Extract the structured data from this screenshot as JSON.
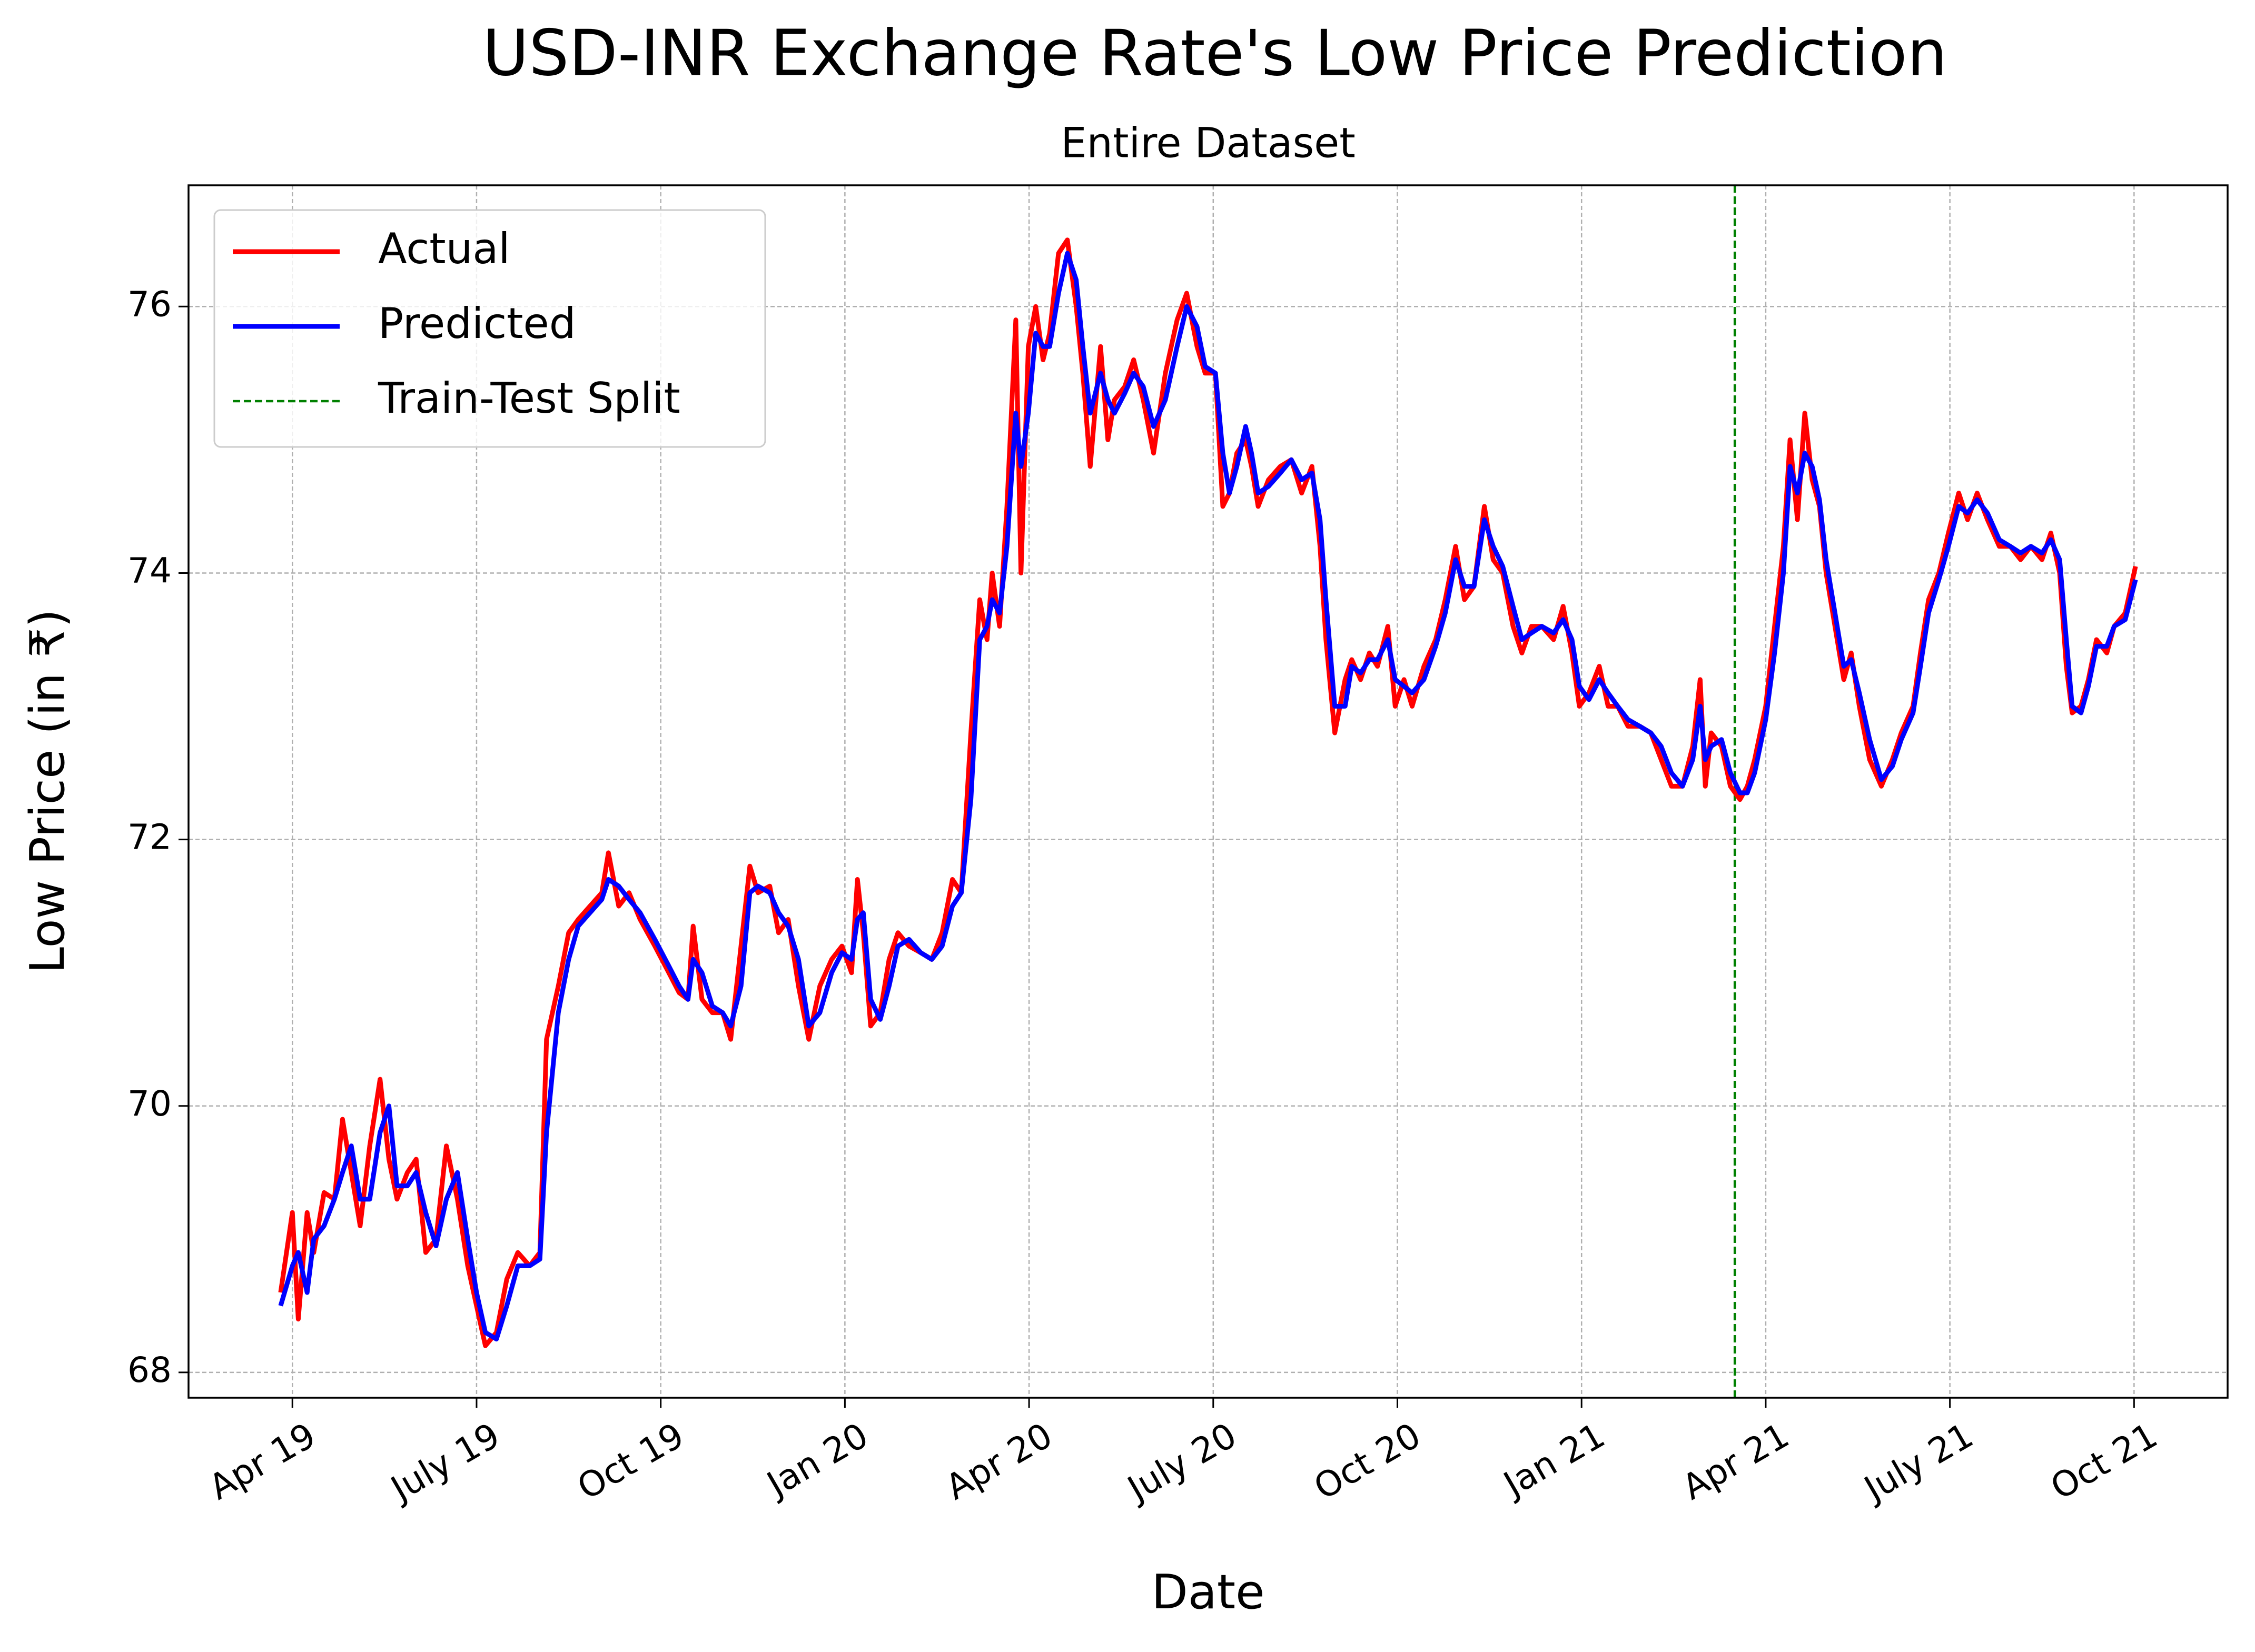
{
  "chart_data": {
    "type": "line",
    "title": "USD-INR Exchange Rate's Low Price Prediction",
    "subtitle": "Entire Dataset",
    "x_label": "Date",
    "y_label": "Low Price (in ₹)",
    "x": [
      2019.234,
      2019.25,
      2019.258,
      2019.27,
      2019.279,
      2019.293,
      2019.307,
      2019.318,
      2019.33,
      2019.342,
      2019.355,
      2019.369,
      2019.381,
      2019.392,
      2019.406,
      2019.418,
      2019.431,
      2019.445,
      2019.459,
      2019.474,
      2019.488,
      2019.5,
      2019.512,
      2019.527,
      2019.541,
      2019.556,
      2019.572,
      2019.586,
      2019.595,
      2019.611,
      2019.625,
      2019.638,
      2019.654,
      2019.67,
      2019.679,
      2019.693,
      2019.707,
      2019.722,
      2019.742,
      2019.761,
      2019.775,
      2019.787,
      2019.794,
      2019.806,
      2019.82,
      2019.834,
      2019.845,
      2019.859,
      2019.871,
      2019.882,
      2019.898,
      2019.91,
      2019.923,
      2019.937,
      2019.951,
      2019.966,
      2019.982,
      2019.996,
      2020.009,
      2020.017,
      2020.025,
      2020.035,
      2020.048,
      2020.06,
      2020.072,
      2020.087,
      2020.103,
      2020.118,
      2020.132,
      2020.146,
      2020.158,
      2020.171,
      2020.183,
      2020.193,
      2020.2,
      2020.21,
      2020.22,
      2020.232,
      2020.239,
      2020.249,
      2020.259,
      2020.269,
      2020.278,
      2020.29,
      2020.302,
      2020.314,
      2020.323,
      2020.333,
      2020.347,
      2020.357,
      2020.366,
      2020.38,
      2020.392,
      2020.405,
      2020.419,
      2020.435,
      2020.451,
      2020.464,
      2020.478,
      2020.489,
      2020.503,
      2020.513,
      2020.522,
      2020.532,
      2020.544,
      2020.552,
      2020.561,
      2020.575,
      2020.591,
      2020.606,
      2020.62,
      2020.634,
      2020.645,
      2020.653,
      2020.665,
      2020.679,
      2020.688,
      2020.7,
      2020.712,
      2020.723,
      2020.737,
      2020.747,
      2020.759,
      2020.77,
      2020.786,
      2020.802,
      2020.815,
      2020.829,
      2020.841,
      2020.854,
      2020.868,
      2020.88,
      2020.893,
      2020.907,
      2020.919,
      2020.932,
      2020.946,
      2020.962,
      2020.975,
      2020.987,
      2020.997,
      2021.01,
      2021.024,
      2021.036,
      2021.049,
      2021.063,
      2021.079,
      2021.094,
      2021.108,
      2021.122,
      2021.137,
      2021.151,
      2021.161,
      2021.168,
      2021.176,
      2021.19,
      2021.202,
      2021.215,
      2021.225,
      2021.235,
      2021.25,
      2021.262,
      2021.274,
      2021.283,
      2021.293,
      2021.303,
      2021.313,
      2021.323,
      2021.332,
      2021.344,
      2021.356,
      2021.366,
      2021.377,
      2021.391,
      2021.407,
      2021.422,
      2021.434,
      2021.45,
      2021.46,
      2021.471,
      2021.485,
      2021.498,
      2021.512,
      2021.524,
      2021.537,
      2021.551,
      2021.567,
      2021.582,
      2021.596,
      2021.61,
      2021.625,
      2021.637,
      2021.649,
      2021.658,
      2021.666,
      2021.678,
      2021.688,
      2021.699,
      2021.713,
      2021.723,
      2021.738,
      2021.752
    ],
    "series": [
      {
        "name": "Actual",
        "color": "#ff0000",
        "values": [
          68.6,
          69.2,
          68.4,
          69.2,
          68.9,
          69.35,
          69.3,
          69.9,
          69.5,
          69.1,
          69.7,
          70.2,
          69.6,
          69.3,
          69.5,
          69.6,
          68.9,
          69.0,
          69.7,
          69.3,
          68.8,
          68.5,
          68.2,
          68.3,
          68.7,
          68.9,
          68.8,
          68.9,
          70.5,
          70.9,
          71.3,
          71.4,
          71.5,
          71.6,
          71.9,
          71.5,
          71.6,
          71.4,
          71.2,
          71.0,
          70.85,
          70.8,
          71.35,
          70.8,
          70.7,
          70.7,
          70.5,
          71.2,
          71.8,
          71.6,
          71.65,
          71.3,
          71.4,
          70.9,
          70.5,
          70.9,
          71.1,
          71.2,
          71.0,
          71.7,
          71.3,
          70.6,
          70.7,
          71.1,
          71.3,
          71.2,
          71.15,
          71.1,
          71.3,
          71.7,
          71.6,
          72.8,
          73.8,
          73.5,
          74.0,
          73.6,
          74.5,
          75.9,
          74.0,
          75.7,
          76.0,
          75.6,
          75.8,
          76.4,
          76.5,
          76.0,
          75.5,
          74.8,
          75.7,
          75.0,
          75.3,
          75.4,
          75.6,
          75.3,
          74.9,
          75.5,
          75.9,
          76.1,
          75.7,
          75.5,
          75.5,
          74.5,
          74.6,
          74.9,
          75.0,
          74.8,
          74.5,
          74.7,
          74.8,
          74.85,
          74.6,
          74.8,
          74.2,
          73.5,
          72.8,
          73.2,
          73.35,
          73.2,
          73.4,
          73.3,
          73.6,
          73.0,
          73.2,
          73.0,
          73.3,
          73.5,
          73.8,
          74.2,
          73.8,
          73.9,
          74.5,
          74.1,
          74.0,
          73.6,
          73.4,
          73.6,
          73.6,
          73.5,
          73.75,
          73.4,
          73.0,
          73.1,
          73.3,
          73.0,
          73.0,
          72.85,
          72.85,
          72.8,
          72.6,
          72.4,
          72.4,
          72.7,
          73.2,
          72.4,
          72.8,
          72.7,
          72.4,
          72.3,
          72.4,
          72.6,
          73.0,
          73.6,
          74.2,
          75.0,
          74.4,
          75.2,
          74.7,
          74.5,
          74.0,
          73.6,
          73.2,
          73.4,
          73.0,
          72.6,
          72.4,
          72.6,
          72.8,
          73.0,
          73.4,
          73.8,
          74.0,
          74.3,
          74.6,
          74.4,
          74.6,
          74.4,
          74.2,
          74.2,
          74.1,
          74.2,
          74.1,
          74.3,
          74.0,
          73.3,
          72.95,
          73.0,
          73.2,
          73.5,
          73.4,
          73.6,
          73.7,
          74.05
        ]
      },
      {
        "name": "Predicted",
        "color": "#0000ff",
        "values": [
          68.5,
          68.8,
          68.9,
          68.6,
          69.0,
          69.1,
          69.3,
          69.5,
          69.7,
          69.3,
          69.3,
          69.8,
          70.0,
          69.4,
          69.4,
          69.5,
          69.2,
          68.95,
          69.3,
          69.5,
          69.0,
          68.6,
          68.3,
          68.25,
          68.5,
          68.8,
          68.8,
          68.85,
          69.8,
          70.7,
          71.1,
          71.35,
          71.45,
          71.55,
          71.7,
          71.65,
          71.55,
          71.45,
          71.25,
          71.05,
          70.9,
          70.8,
          71.1,
          71.0,
          70.75,
          70.7,
          70.6,
          70.9,
          71.6,
          71.65,
          71.6,
          71.45,
          71.35,
          71.1,
          70.6,
          70.7,
          71.0,
          71.15,
          71.1,
          71.4,
          71.45,
          70.8,
          70.65,
          70.9,
          71.2,
          71.25,
          71.15,
          71.1,
          71.2,
          71.5,
          71.6,
          72.3,
          73.5,
          73.6,
          73.8,
          73.7,
          74.2,
          75.2,
          74.8,
          75.2,
          75.8,
          75.7,
          75.7,
          76.1,
          76.4,
          76.2,
          75.7,
          75.2,
          75.5,
          75.3,
          75.2,
          75.35,
          75.5,
          75.4,
          75.1,
          75.3,
          75.7,
          76.0,
          75.85,
          75.55,
          75.5,
          74.9,
          74.6,
          74.8,
          75.1,
          74.9,
          74.6,
          74.65,
          74.75,
          74.85,
          74.7,
          74.75,
          74.4,
          73.8,
          73.0,
          73.0,
          73.3,
          73.25,
          73.35,
          73.35,
          73.5,
          73.2,
          73.15,
          73.1,
          73.2,
          73.45,
          73.7,
          74.1,
          73.9,
          73.9,
          74.4,
          74.2,
          74.05,
          73.75,
          73.5,
          73.55,
          73.6,
          73.55,
          73.65,
          73.5,
          73.15,
          73.05,
          73.2,
          73.1,
          73.0,
          72.9,
          72.85,
          72.8,
          72.7,
          72.5,
          72.4,
          72.6,
          73.0,
          72.6,
          72.7,
          72.75,
          72.5,
          72.35,
          72.35,
          72.5,
          72.9,
          73.4,
          74.0,
          74.8,
          74.6,
          74.9,
          74.8,
          74.55,
          74.1,
          73.7,
          73.3,
          73.35,
          73.1,
          72.75,
          72.45,
          72.55,
          72.75,
          72.95,
          73.3,
          73.7,
          73.95,
          74.2,
          74.5,
          74.45,
          74.55,
          74.45,
          74.25,
          74.2,
          74.15,
          74.2,
          74.15,
          74.25,
          74.1,
          73.5,
          73.0,
          72.95,
          73.15,
          73.45,
          73.45,
          73.6,
          73.65,
          73.95
        ]
      }
    ],
    "vlines": [
      {
        "x": 2021.208,
        "label": "Train-Test Split",
        "color": "#008000"
      }
    ],
    "xlim": [
      2019.109,
      2021.877
    ],
    "ylim": [
      67.81,
      76.91
    ],
    "xticks": [
      {
        "value": 2019.25,
        "label": "Apr 19"
      },
      {
        "value": 2019.5,
        "label": "July 19"
      },
      {
        "value": 2019.75,
        "label": "Oct 19"
      },
      {
        "value": 2020.0,
        "label": "Jan 20"
      },
      {
        "value": 2020.25,
        "label": "Apr 20"
      },
      {
        "value": 2020.5,
        "label": "July 20"
      },
      {
        "value": 2020.75,
        "label": "Oct 20"
      },
      {
        "value": 2021.0,
        "label": "Jan 21"
      },
      {
        "value": 2021.25,
        "label": "Apr 21"
      },
      {
        "value": 2021.5,
        "label": "July 21"
      },
      {
        "value": 2021.75,
        "label": "Oct 21"
      }
    ],
    "yticks": [
      68,
      70,
      72,
      74,
      76
    ],
    "grid": true,
    "legend": "upper left"
  }
}
